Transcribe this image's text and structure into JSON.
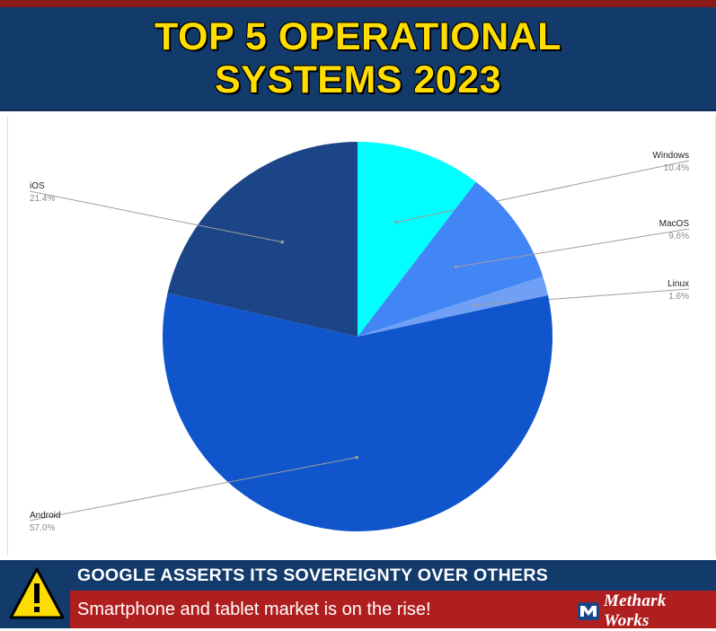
{
  "header": {
    "title": "TOP 5 OPERATIONAL SYSTEMS 2023"
  },
  "chart_data": {
    "type": "pie",
    "title": "",
    "slices": [
      {
        "label": "Windows",
        "value": 10.4,
        "pct_label": "10.4%",
        "color": "#00ffff"
      },
      {
        "label": "MacOS",
        "value": 9.6,
        "pct_label": "9.6%",
        "color": "#4285f4"
      },
      {
        "label": "Linux",
        "value": 1.6,
        "pct_label": "1.6%",
        "color": "#6fa0f5"
      },
      {
        "label": "Android",
        "value": 57.0,
        "pct_label": "57.0%",
        "color": "#1155cc"
      },
      {
        "label": "iOS",
        "value": 21.4,
        "pct_label": "21.4%",
        "color": "#1c4587"
      }
    ],
    "start": "12 o'clock",
    "direction": "clockwise",
    "legend": "none"
  },
  "footer": {
    "headline": "GOOGLE ASSERTS ITS SOVEREIGNTY OVER OTHERS",
    "subline": "Smartphone and tablet market is on the rise!",
    "brand": "Methark Works",
    "warning_icon": "warning-triangle-icon",
    "colors": {
      "navy": "#123a6b",
      "red": "#b01f1f",
      "yellow": "#ffdd00"
    }
  }
}
